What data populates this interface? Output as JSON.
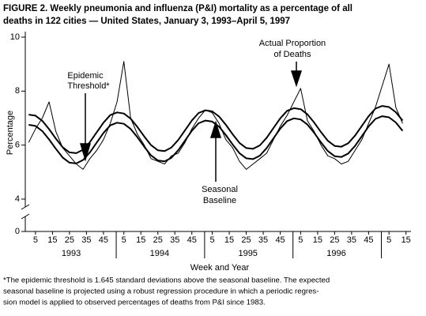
{
  "chart_data": {
    "type": "line",
    "title_lines": [
      "FIGURE 2. Weekly pneumonia and influenza (P&I) mortality as a percentage of all",
      "deaths in 122 cities — United States, January 3, 1993–April 5, 1997"
    ],
    "xlabel": "Week and Year",
    "ylabel": "Percentage",
    "x": [
      1,
      5,
      9,
      13,
      17,
      21,
      25,
      29,
      33,
      37,
      41,
      45,
      49,
      53,
      57,
      61,
      65,
      69,
      73,
      77,
      81,
      85,
      89,
      93,
      97,
      101,
      105,
      109,
      113,
      117,
      121,
      125,
      129,
      133,
      137,
      141,
      145,
      149,
      153,
      157,
      161,
      165,
      169,
      173,
      177,
      181,
      185,
      189,
      193,
      197,
      201,
      205,
      209,
      213,
      217,
      221
    ],
    "series": [
      {
        "name": "Actual Proportion of Deaths",
        "color": "#000000",
        "width": 1,
        "values": [
          6.1,
          6.6,
          7.0,
          7.6,
          6.5,
          5.9,
          5.6,
          5.3,
          5.1,
          5.5,
          5.8,
          6.2,
          6.8,
          7.6,
          9.1,
          7.0,
          6.4,
          6.0,
          5.5,
          5.4,
          5.3,
          5.6,
          5.7,
          6.1,
          6.6,
          7.0,
          7.3,
          7.2,
          6.8,
          6.2,
          5.9,
          5.4,
          5.1,
          5.3,
          5.5,
          5.7,
          6.2,
          6.7,
          7.1,
          7.6,
          8.1,
          6.9,
          6.5,
          6.0,
          5.6,
          5.5,
          5.3,
          5.4,
          5.8,
          6.2,
          6.8,
          7.4,
          8.2,
          9.0,
          7.4,
          6.8
        ]
      },
      {
        "name": "Epidemic Threshold",
        "color": "#000000",
        "width": 2,
        "values": [
          7.13,
          7.09,
          6.9,
          6.59,
          6.24,
          5.92,
          5.73,
          5.7,
          5.83,
          6.11,
          6.47,
          6.83,
          7.11,
          7.21,
          7.17,
          6.98,
          6.67,
          6.32,
          6.0,
          5.81,
          5.78,
          5.91,
          6.19,
          6.55,
          6.91,
          7.19,
          7.29,
          7.25,
          7.06,
          6.75,
          6.4,
          6.08,
          5.89,
          5.86,
          5.99,
          6.27,
          6.63,
          6.99,
          7.27,
          7.37,
          7.33,
          7.14,
          6.83,
          6.48,
          6.16,
          5.97,
          5.94,
          6.07,
          6.35,
          6.71,
          7.07,
          7.35,
          7.45,
          7.41,
          7.22,
          6.91
        ]
      },
      {
        "name": "Seasonal Baseline",
        "color": "#000000",
        "width": 2,
        "values": [
          6.75,
          6.71,
          6.52,
          6.21,
          5.86,
          5.54,
          5.35,
          5.32,
          5.45,
          5.73,
          6.09,
          6.45,
          6.73,
          6.83,
          6.79,
          6.6,
          6.29,
          5.94,
          5.62,
          5.43,
          5.4,
          5.53,
          5.81,
          6.17,
          6.53,
          6.81,
          6.91,
          6.87,
          6.68,
          6.37,
          6.02,
          5.7,
          5.51,
          5.48,
          5.61,
          5.89,
          6.25,
          6.61,
          6.89,
          6.99,
          6.95,
          6.76,
          6.45,
          6.1,
          5.78,
          5.59,
          5.56,
          5.69,
          5.97,
          6.33,
          6.69,
          6.97,
          7.07,
          7.03,
          6.84,
          6.53
        ]
      }
    ],
    "xlim": [
      -1,
      225
    ],
    "xticks": [
      {
        "value": 5,
        "label": "5"
      },
      {
        "value": 15,
        "label": "15"
      },
      {
        "value": 25,
        "label": "25"
      },
      {
        "value": 35,
        "label": "35"
      },
      {
        "value": 45,
        "label": "45"
      },
      {
        "value": 57,
        "label": "5"
      },
      {
        "value": 67,
        "label": "15"
      },
      {
        "value": 77,
        "label": "25"
      },
      {
        "value": 87,
        "label": "35"
      },
      {
        "value": 97,
        "label": "45"
      },
      {
        "value": 109,
        "label": "5"
      },
      {
        "value": 119,
        "label": "15"
      },
      {
        "value": 129,
        "label": "25"
      },
      {
        "value": 139,
        "label": "35"
      },
      {
        "value": 149,
        "label": "45"
      },
      {
        "value": 161,
        "label": "5"
      },
      {
        "value": 171,
        "label": "15"
      },
      {
        "value": 181,
        "label": "25"
      },
      {
        "value": 191,
        "label": "35"
      },
      {
        "value": 201,
        "label": "45"
      },
      {
        "value": 213,
        "label": "5"
      },
      {
        "value": 223,
        "label": "15"
      }
    ],
    "year_labels": [
      {
        "value": 26,
        "label": "1993"
      },
      {
        "value": 78,
        "label": "1994"
      },
      {
        "value": 130,
        "label": "1995"
      },
      {
        "value": 182,
        "label": "1996"
      }
    ],
    "ylim": [
      4,
      10
    ],
    "yticks": [
      4,
      6,
      8,
      10
    ],
    "ybreak_tick": 0,
    "annotations": [
      {
        "lines": [
          "Epidemic",
          "Threshold*"
        ]
      },
      {
        "lines": [
          "Actual Proportion",
          "of Deaths"
        ]
      },
      {
        "lines": [
          "Seasonal",
          "Baseline"
        ]
      }
    ],
    "footnote_lines": [
      "*The epidemic threshold is 1.645 standard deviations above the seasonal baseline. The expected",
      "seasonal baseline is projected using a robust regression procedure in which a periodic regres-",
      "sion model is applied to observed percentages of deaths from P&I since 1983."
    ]
  }
}
